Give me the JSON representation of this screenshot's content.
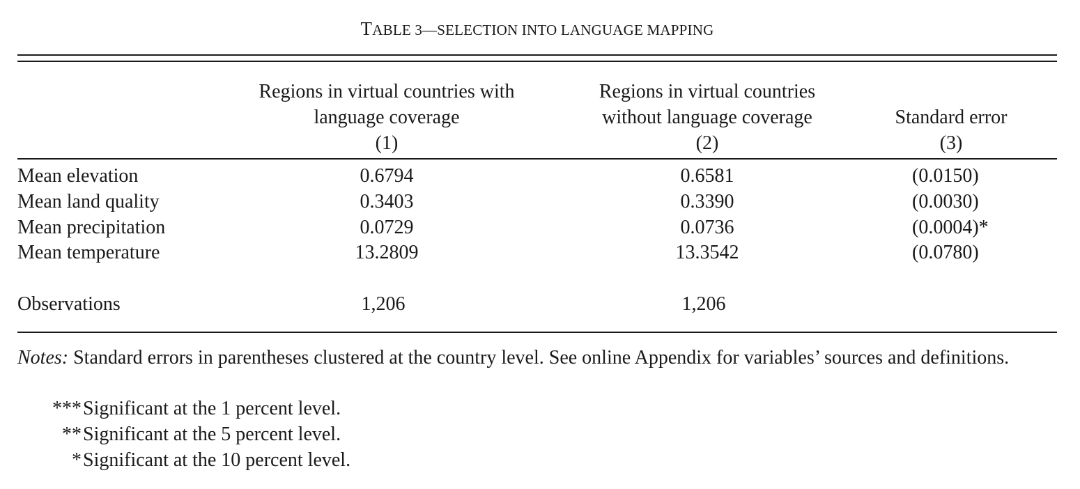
{
  "table": {
    "title_lead": "T",
    "title_rest": "able 3—Selection into Language Mapping",
    "columns": [
      {
        "line1": "Regions in virtual countries with",
        "line2": "language coverage",
        "num": "(1)"
      },
      {
        "line1": "Regions in virtual countries",
        "line2": "without language coverage",
        "num": "(2)"
      },
      {
        "line1": "",
        "line2": "Standard error",
        "num": "(3)"
      }
    ],
    "rows": [
      {
        "label": "Mean elevation",
        "c1": "0.6794",
        "c2": "0.6581",
        "c3": "(0.0150)"
      },
      {
        "label": "Mean land quality",
        "c1": "0.3403",
        "c2": "0.3390",
        "c3": "(0.0030)"
      },
      {
        "label": "Mean precipitation",
        "c1": "0.0729",
        "c2": "0.0736",
        "c3": "(0.0004)*"
      },
      {
        "label": "Mean temperature",
        "c1": "13.2809",
        "c2": "13.3542",
        "c3": "(0.0780)"
      }
    ],
    "observations": {
      "label": "Observations",
      "c1": "1,206",
      "c2": "1,206"
    }
  },
  "notes": {
    "label": "Notes:",
    "text": " Standard errors in parentheses clustered at the country level. See online Appendix for variables’ sources and definitions.",
    "significance": [
      {
        "stars": "***",
        "text": "Significant at the 1 percent level."
      },
      {
        "stars": "**",
        "text": "Significant at the 5 percent level."
      },
      {
        "stars": "*",
        "text": "Significant at the 10 percent level."
      }
    ]
  }
}
